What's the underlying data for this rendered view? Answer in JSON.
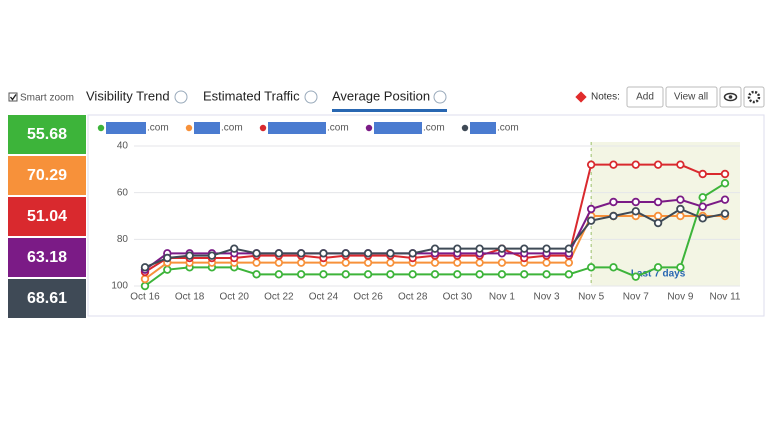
{
  "ui": {
    "smart_zoom": "Smart zoom",
    "tabs": [
      "Visibility Trend",
      "Estimated Traffic",
      "Average Position"
    ],
    "notes": "Notes:",
    "buttons": [
      "Add",
      "View all"
    ],
    "scores": [
      {
        "value": "55.68",
        "color": "#3db43a"
      },
      {
        "value": "70.29",
        "color": "#f7913a"
      },
      {
        "value": "51.04",
        "color": "#d9292e"
      },
      {
        "value": "63.18",
        "color": "#7b1b86"
      },
      {
        "value": "68.61",
        "color": "#3f4a56"
      }
    ]
  },
  "chart_data": {
    "type": "line",
    "annotation": "Last 7 days",
    "categories": [
      "Oct 16",
      null,
      "Oct 18",
      null,
      "Oct 20",
      null,
      "Oct 22",
      null,
      "Oct 24",
      null,
      "Oct 26",
      null,
      "Oct 28",
      null,
      "Oct 30",
      null,
      "Nov 1",
      null,
      "Nov 3",
      null,
      "Nov 5",
      null,
      "Nov 7",
      null,
      "Nov 9",
      null,
      "Nov 11"
    ],
    "series": [
      {
        "name": ".com",
        "color": "#3db43a",
        "values": [
          100,
          93,
          92,
          92,
          92,
          95,
          95,
          95,
          95,
          95,
          95,
          95,
          95,
          95,
          95,
          95,
          95,
          95,
          95,
          95,
          92,
          92,
          96,
          92,
          92,
          62,
          56
        ]
      },
      {
        "name": ".com",
        "color": "#f7913a",
        "values": [
          97,
          90,
          90,
          90,
          90,
          90,
          90,
          90,
          90,
          90,
          90,
          90,
          90,
          90,
          90,
          90,
          90,
          90,
          90,
          90,
          70,
          70,
          70,
          70,
          70,
          70,
          70
        ]
      },
      {
        "name": ".com",
        "color": "#d9292e",
        "values": [
          94,
          88,
          88,
          88,
          88,
          87,
          87,
          87,
          88,
          87,
          87,
          87,
          88,
          87,
          87,
          87,
          84,
          88,
          87,
          87,
          48,
          48,
          48,
          48,
          48,
          52,
          52
        ]
      },
      {
        "name": ".com",
        "color": "#7b1b86",
        "values": [
          93,
          86,
          86,
          86,
          86,
          86,
          86,
          86,
          86,
          86,
          86,
          86,
          86,
          86,
          86,
          86,
          86,
          86,
          86,
          86,
          67,
          64,
          64,
          64,
          63,
          66,
          63
        ]
      },
      {
        "name": ".com",
        "color": "#3f4a56",
        "values": [
          92,
          88,
          87,
          87,
          84,
          86,
          86,
          86,
          86,
          86,
          86,
          86,
          86,
          84,
          84,
          84,
          84,
          84,
          84,
          84,
          72,
          70,
          68,
          73,
          67,
          71,
          69
        ]
      }
    ],
    "ylim": [
      100,
      40
    ],
    "yticks": [
      40,
      60,
      80,
      100
    ],
    "grid": true
  }
}
